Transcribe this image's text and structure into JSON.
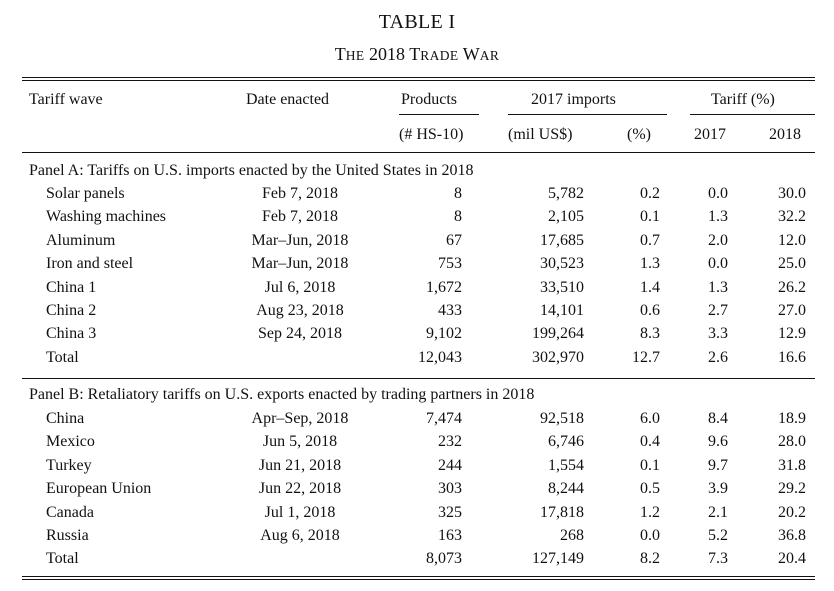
{
  "title": {
    "line1": "TABLE I",
    "line2_big1": "T",
    "line2_small1": "HE",
    "line2_num": " 2018 ",
    "line2_big2": "T",
    "line2_small2": "RADE",
    "line2_sp": " ",
    "line2_big3": "W",
    "line2_small3": "AR"
  },
  "header": {
    "tariff_wave": "Tariff wave",
    "date_enacted": "Date enacted",
    "products": "Products",
    "imports_2017": "2017 imports",
    "tariff_pct": "Tariff (%)",
    "hs10": "(# HS-10)",
    "mil_usd": "(mil US$)",
    "pct": "(%)",
    "y2017": "2017",
    "y2018": "2018"
  },
  "panelA": {
    "title": "Panel A: Tariffs on U.S. imports enacted by the United States in 2018",
    "rows": [
      {
        "wave": "Solar panels",
        "date": "Feb 7, 2018",
        "products": "8",
        "imports": "5,782",
        "pct": "0.2",
        "t2017": "0.0",
        "t2018": "30.0"
      },
      {
        "wave": "Washing machines",
        "date": "Feb 7, 2018",
        "products": "8",
        "imports": "2,105",
        "pct": "0.1",
        "t2017": "1.3",
        "t2018": "32.2"
      },
      {
        "wave": "Aluminum",
        "date": "Mar–Jun, 2018",
        "products": "67",
        "imports": "17,685",
        "pct": "0.7",
        "t2017": "2.0",
        "t2018": "12.0"
      },
      {
        "wave": "Iron and steel",
        "date": "Mar–Jun, 2018",
        "products": "753",
        "imports": "30,523",
        "pct": "1.3",
        "t2017": "0.0",
        "t2018": "25.0"
      },
      {
        "wave": "China 1",
        "date": "Jul 6, 2018",
        "products": "1,672",
        "imports": "33,510",
        "pct": "1.4",
        "t2017": "1.3",
        "t2018": "26.2"
      },
      {
        "wave": "China 2",
        "date": "Aug 23, 2018",
        "products": "433",
        "imports": "14,101",
        "pct": "0.6",
        "t2017": "2.7",
        "t2018": "27.0"
      },
      {
        "wave": "China 3",
        "date": "Sep 24, 2018",
        "products": "9,102",
        "imports": "199,264",
        "pct": "8.3",
        "t2017": "3.3",
        "t2018": "12.9"
      },
      {
        "wave": "Total",
        "date": "",
        "products": "12,043",
        "imports": "302,970",
        "pct": "12.7",
        "t2017": "2.6",
        "t2018": "16.6"
      }
    ]
  },
  "panelB": {
    "title": "Panel B: Retaliatory tariffs on U.S. exports enacted by trading partners in 2018",
    "rows": [
      {
        "wave": "China",
        "date": "Apr–Sep, 2018",
        "products": "7,474",
        "imports": "92,518",
        "pct": "6.0",
        "t2017": "8.4",
        "t2018": "18.9"
      },
      {
        "wave": "Mexico",
        "date": "Jun 5, 2018",
        "products": "232",
        "imports": "6,746",
        "pct": "0.4",
        "t2017": "9.6",
        "t2018": "28.0"
      },
      {
        "wave": "Turkey",
        "date": "Jun 21, 2018",
        "products": "244",
        "imports": "1,554",
        "pct": "0.1",
        "t2017": "9.7",
        "t2018": "31.8"
      },
      {
        "wave": "European Union",
        "date": "Jun 22, 2018",
        "products": "303",
        "imports": "8,244",
        "pct": "0.5",
        "t2017": "3.9",
        "t2018": "29.2"
      },
      {
        "wave": "Canada",
        "date": "Jul 1, 2018",
        "products": "325",
        "imports": "17,818",
        "pct": "1.2",
        "t2017": "2.1",
        "t2018": "20.2"
      },
      {
        "wave": "Russia",
        "date": "Aug 6, 2018",
        "products": "163",
        "imports": "268",
        "pct": "0.0",
        "t2017": "5.2",
        "t2018": "36.8"
      },
      {
        "wave": "Total",
        "date": "",
        "products": "8,073",
        "imports": "127,149",
        "pct": "8.2",
        "t2017": "7.3",
        "t2018": "20.4"
      }
    ]
  }
}
